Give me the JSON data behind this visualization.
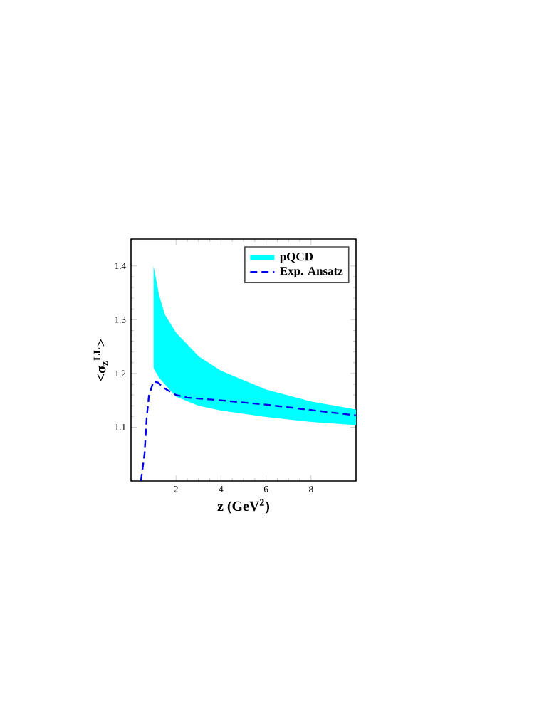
{
  "chart_data": {
    "type": "line",
    "xlabel": "z (GeV$^{2}$)",
    "ylabel": "<σ$_{z}$$^{LL}$>",
    "xlim": [
      0,
      10
    ],
    "ylim": [
      1.0,
      1.45
    ],
    "xticks": [
      2,
      4,
      6,
      8
    ],
    "yticks": [
      1.1,
      1.2,
      1.3,
      1.4
    ],
    "legend": "top right",
    "series": [
      {
        "name": "pQCD",
        "color": "#00ffff",
        "x": [
          1,
          1.25,
          1.5,
          2,
          3,
          4,
          6,
          8,
          10
        ],
        "values": [
          null,
          null,
          null,
          null,
          null,
          null,
          null,
          null,
          null
        ],
        "lower": [
          1.21,
          1.192,
          1.18,
          1.157,
          1.14,
          1.131,
          1.119,
          1.11,
          1.104
        ],
        "upper": [
          1.4,
          1.345,
          1.31,
          1.276,
          1.232,
          1.205,
          1.17,
          1.148,
          1.133
        ]
      },
      {
        "name": "Exp. Ansatz",
        "color": "#0000ee",
        "line_style": "dashed",
        "x": [
          0.44,
          0.6,
          0.7,
          0.8,
          1,
          1.2,
          1.5,
          2,
          2.5,
          4,
          6,
          8,
          10
        ],
        "values": [
          1.0,
          1.05,
          1.12,
          1.16,
          1.185,
          1.183,
          1.172,
          1.16,
          1.155,
          1.15,
          1.142,
          1.132,
          1.122
        ]
      }
    ]
  }
}
